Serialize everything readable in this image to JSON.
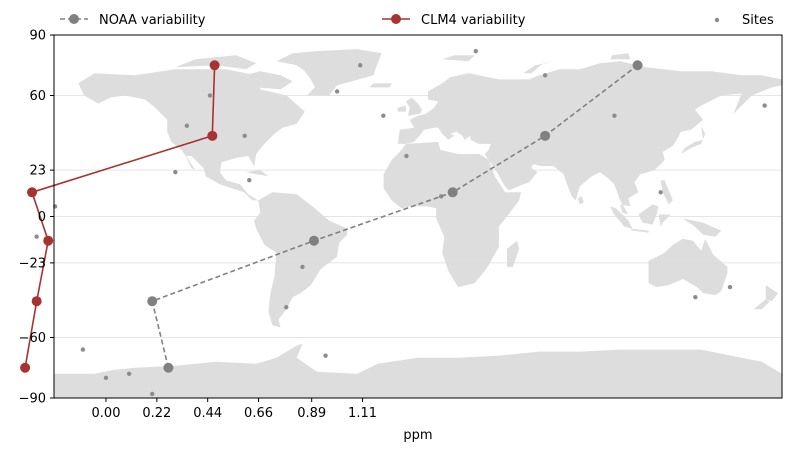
{
  "chart_data": {
    "type": "line",
    "title": "",
    "xlabel": "ppm",
    "ylabel": "",
    "xlim": [
      -0.225,
      2.925
    ],
    "xticks": [
      0.0,
      0.22,
      0.44,
      0.66,
      0.89,
      1.11
    ],
    "xtick_labels": [
      "0.00",
      "0.22",
      "0.44",
      "0.66",
      "0.89",
      "1.11"
    ],
    "ylim": [
      -90,
      90
    ],
    "yticks": [
      90,
      60,
      23,
      0,
      -23,
      -60,
      -90
    ],
    "ytick_labels": [
      "90",
      "60",
      "23",
      "0",
      "−23",
      "−60",
      "−90"
    ],
    "grid": "horizontal",
    "background": "world-map",
    "legend_position": "top",
    "series": [
      {
        "name": "NOAA variability",
        "color": "#808080",
        "line_style": "dashed",
        "x": [
          0.27,
          0.2,
          0.9,
          1.5,
          1.9,
          2.3
        ],
        "y": [
          -75,
          -42,
          -12,
          12,
          40,
          75
        ]
      },
      {
        "name": "CLM4 variability",
        "color": "#a83232",
        "line_style": "solid",
        "x": [
          -0.35,
          -0.3,
          -0.25,
          -0.32,
          0.46,
          0.47
        ],
        "y": [
          -75,
          -42,
          -12,
          12,
          40,
          75
        ]
      },
      {
        "name": "Sites",
        "color": "#8c8c8c",
        "line_style": "none",
        "x": [
          -0.3,
          -0.22,
          0.3,
          0.6,
          0.85,
          1.0,
          1.1,
          1.3,
          1.6,
          1.9,
          2.2,
          2.4,
          2.55,
          2.7,
          2.85,
          -0.1,
          0.0,
          0.1,
          0.2,
          0.35,
          0.45,
          0.62,
          0.78,
          0.95,
          1.2,
          1.45
        ],
        "y": [
          -10,
          5,
          22,
          40,
          -25,
          62,
          75,
          30,
          82,
          70,
          50,
          12,
          -40,
          -35,
          55,
          -66,
          -80,
          -78,
          -88,
          45,
          60,
          18,
          -45,
          -69,
          50,
          10
        ]
      }
    ]
  }
}
